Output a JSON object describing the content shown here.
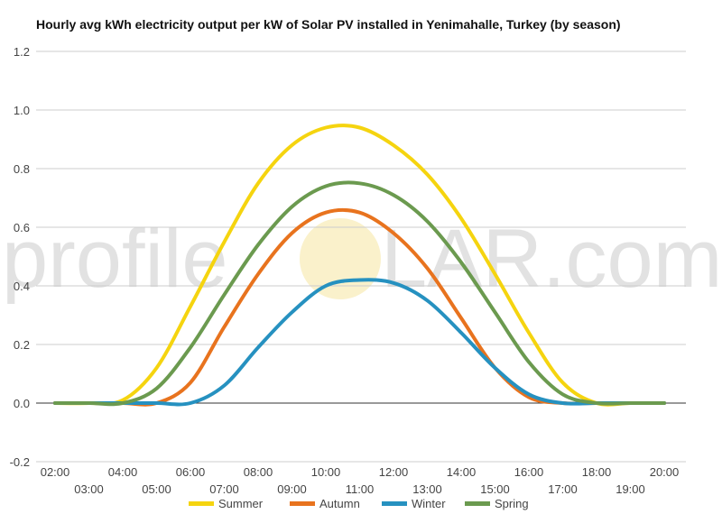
{
  "chart_data": {
    "type": "line",
    "title": "Hourly avg kWh electricity output per kW of Solar PV installed in Yenimahalle, Turkey (by season)",
    "xlabel": "",
    "ylabel": "",
    "ylim": [
      -0.2,
      1.2
    ],
    "yticks": [
      "-0.2",
      "0.0",
      "0.2",
      "0.4",
      "0.6",
      "0.8",
      "1.0",
      "1.2"
    ],
    "x": [
      "02:00",
      "03:00",
      "04:00",
      "05:00",
      "06:00",
      "07:00",
      "08:00",
      "09:00",
      "10:00",
      "11:00",
      "12:00",
      "13:00",
      "14:00",
      "15:00",
      "16:00",
      "17:00",
      "18:00",
      "19:00",
      "20:00"
    ],
    "grid": true,
    "legend_position": "bottom",
    "series": [
      {
        "name": "Summer",
        "color": "#f5d40f",
        "values": [
          0,
          0,
          0.01,
          0.12,
          0.33,
          0.55,
          0.75,
          0.88,
          0.94,
          0.94,
          0.88,
          0.78,
          0.63,
          0.44,
          0.24,
          0.07,
          0,
          0,
          0
        ]
      },
      {
        "name": "Autumn",
        "color": "#e8731e",
        "values": [
          0,
          0,
          0,
          0,
          0.07,
          0.26,
          0.44,
          0.58,
          0.65,
          0.65,
          0.58,
          0.46,
          0.29,
          0.12,
          0.02,
          0,
          0,
          0,
          0
        ]
      },
      {
        "name": "Winter",
        "color": "#2691c0",
        "values": [
          0,
          0,
          0,
          0,
          0,
          0.06,
          0.19,
          0.31,
          0.4,
          0.42,
          0.41,
          0.35,
          0.24,
          0.12,
          0.03,
          0,
          0,
          0,
          0
        ]
      },
      {
        "name": "Spring",
        "color": "#6b9a4f",
        "values": [
          0,
          0,
          0,
          0.05,
          0.19,
          0.37,
          0.54,
          0.67,
          0.74,
          0.75,
          0.71,
          0.62,
          0.48,
          0.31,
          0.14,
          0.03,
          0,
          0,
          0
        ]
      }
    ]
  },
  "watermark": {
    "text_left": "profile",
    "text_right": "LAR.com",
    "sun_color": "#f6e7a8"
  }
}
